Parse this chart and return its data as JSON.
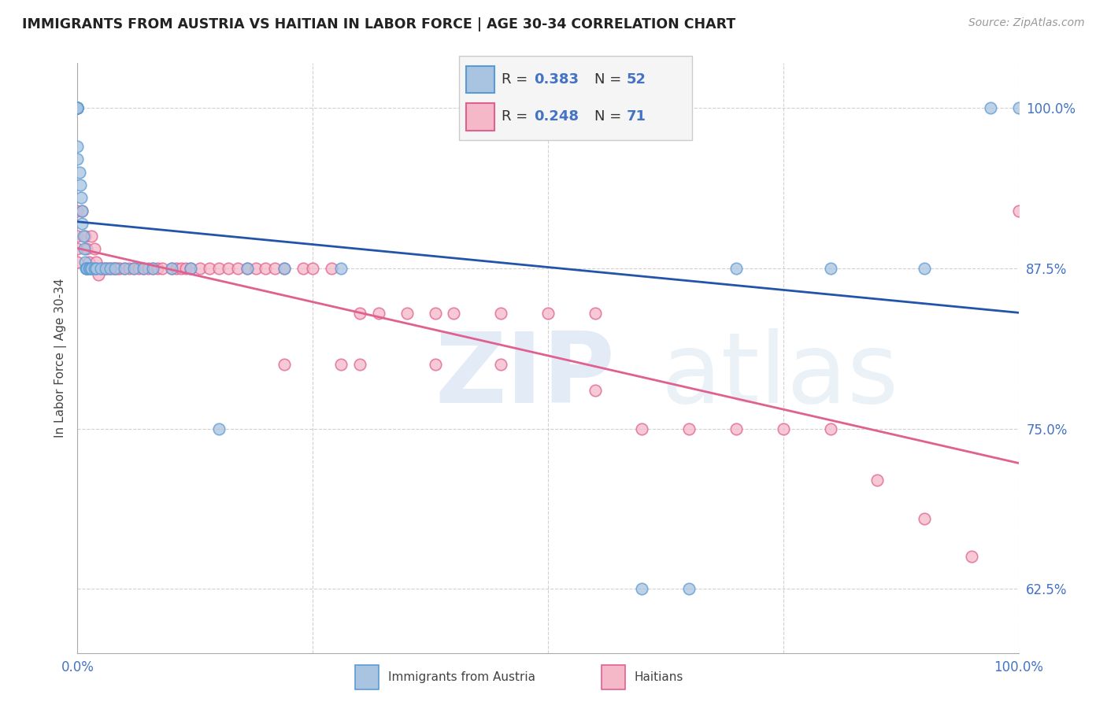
{
  "title": "IMMIGRANTS FROM AUSTRIA VS HAITIAN IN LABOR FORCE | AGE 30-34 CORRELATION CHART",
  "source": "Source: ZipAtlas.com",
  "ylabel": "In Labor Force | Age 30-34",
  "austria_R": 0.383,
  "austria_N": 52,
  "haitian_R": 0.248,
  "haitian_N": 71,
  "austria_color": "#a8c4e0",
  "austria_edge": "#5b9bd5",
  "haitian_color": "#f4b8c8",
  "haitian_edge": "#e06090",
  "trend_austria": "#2255aa",
  "trend_haitian": "#e06090",
  "xlim": [
    0.0,
    1.0
  ],
  "ylim": [
    0.575,
    1.035
  ],
  "yticks": [
    0.625,
    0.75,
    0.875,
    1.0
  ],
  "ytick_labels": [
    "62.5%",
    "75.0%",
    "87.5%",
    "100.0%"
  ],
  "xticks": [
    0.0,
    0.25,
    0.5,
    0.75,
    1.0
  ],
  "xtick_labels": [
    "0.0%",
    "",
    "",
    "",
    "100.0%"
  ],
  "background": "#ffffff",
  "grid_color": "#cccccc",
  "austria_x": [
    0.0,
    0.0,
    0.0,
    0.0,
    0.0,
    0.0,
    0.0,
    0.0,
    0.0,
    0.0,
    0.0,
    0.0,
    0.002,
    0.003,
    0.004,
    0.005,
    0.005,
    0.006,
    0.007,
    0.008,
    0.009,
    0.01,
    0.01,
    0.01,
    0.012,
    0.013,
    0.015,
    0.015,
    0.018,
    0.02,
    0.02,
    0.025,
    0.03,
    0.035,
    0.04,
    0.05,
    0.06,
    0.07,
    0.08,
    0.1,
    0.12,
    0.15,
    0.18,
    0.22,
    0.28,
    0.6,
    0.65,
    0.7,
    0.8,
    0.9,
    0.97,
    1.0
  ],
  "austria_y": [
    1.0,
    1.0,
    1.0,
    1.0,
    1.0,
    1.0,
    1.0,
    1.0,
    1.0,
    1.0,
    0.97,
    0.96,
    0.95,
    0.94,
    0.93,
    0.92,
    0.91,
    0.9,
    0.89,
    0.88,
    0.875,
    0.875,
    0.875,
    0.875,
    0.875,
    0.875,
    0.875,
    0.875,
    0.875,
    0.875,
    0.875,
    0.875,
    0.875,
    0.875,
    0.875,
    0.875,
    0.875,
    0.875,
    0.875,
    0.875,
    0.875,
    0.75,
    0.875,
    0.875,
    0.875,
    0.625,
    0.625,
    0.875,
    0.875,
    0.875,
    1.0,
    1.0
  ],
  "haitian_x": [
    0.0,
    0.0,
    0.0,
    0.0,
    0.005,
    0.008,
    0.01,
    0.012,
    0.015,
    0.018,
    0.02,
    0.022,
    0.025,
    0.028,
    0.03,
    0.032,
    0.035,
    0.038,
    0.04,
    0.042,
    0.045,
    0.05,
    0.055,
    0.06,
    0.065,
    0.07,
    0.075,
    0.08,
    0.085,
    0.09,
    0.1,
    0.105,
    0.11,
    0.115,
    0.12,
    0.13,
    0.14,
    0.15,
    0.16,
    0.17,
    0.18,
    0.19,
    0.2,
    0.21,
    0.22,
    0.24,
    0.25,
    0.27,
    0.3,
    0.32,
    0.35,
    0.38,
    0.4,
    0.45,
    0.5,
    0.55,
    0.22,
    0.28,
    0.3,
    0.38,
    0.45,
    0.55,
    0.6,
    0.65,
    0.7,
    0.75,
    0.8,
    0.85,
    0.9,
    0.95,
    1.0
  ],
  "haitian_y": [
    0.92,
    0.9,
    0.89,
    0.88,
    0.92,
    0.9,
    0.89,
    0.88,
    0.9,
    0.89,
    0.88,
    0.87,
    0.875,
    0.875,
    0.875,
    0.875,
    0.875,
    0.875,
    0.875,
    0.875,
    0.875,
    0.875,
    0.875,
    0.875,
    0.875,
    0.875,
    0.875,
    0.875,
    0.875,
    0.875,
    0.875,
    0.875,
    0.875,
    0.875,
    0.875,
    0.875,
    0.875,
    0.875,
    0.875,
    0.875,
    0.875,
    0.875,
    0.875,
    0.875,
    0.875,
    0.875,
    0.875,
    0.875,
    0.84,
    0.84,
    0.84,
    0.84,
    0.84,
    0.84,
    0.84,
    0.84,
    0.8,
    0.8,
    0.8,
    0.8,
    0.8,
    0.78,
    0.75,
    0.75,
    0.75,
    0.75,
    0.75,
    0.71,
    0.68,
    0.65,
    0.92
  ]
}
